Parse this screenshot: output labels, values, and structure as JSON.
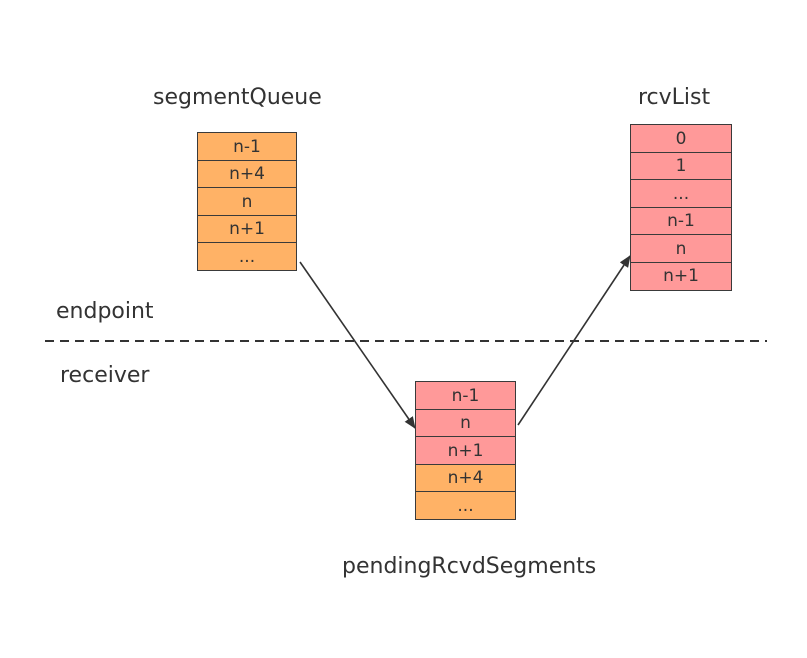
{
  "colors": {
    "orange": "#ffb266",
    "pink": "#ff9999",
    "line": "#333333"
  },
  "segment_queue": {
    "title": "segmentQueue",
    "cells": [
      {
        "text": "n-1",
        "color": "orange"
      },
      {
        "text": "n+4",
        "color": "orange"
      },
      {
        "text": "n",
        "color": "orange"
      },
      {
        "text": "n+1",
        "color": "orange"
      },
      {
        "text": "...",
        "color": "orange"
      }
    ]
  },
  "rcv_list": {
    "title": "rcvList",
    "cells": [
      {
        "text": "0",
        "color": "pink"
      },
      {
        "text": "1",
        "color": "pink"
      },
      {
        "text": "...",
        "color": "pink"
      },
      {
        "text": "n-1",
        "color": "pink"
      },
      {
        "text": "n",
        "color": "pink"
      },
      {
        "text": "n+1",
        "color": "pink"
      }
    ]
  },
  "pending": {
    "title": "pendingRcvdSegments",
    "cells": [
      {
        "text": "n-1",
        "color": "pink"
      },
      {
        "text": "n",
        "color": "pink"
      },
      {
        "text": "n+1",
        "color": "pink"
      },
      {
        "text": "n+4",
        "color": "orange"
      },
      {
        "text": "...",
        "color": "orange"
      }
    ]
  },
  "zones": {
    "top": "endpoint",
    "bottom": "receiver"
  }
}
